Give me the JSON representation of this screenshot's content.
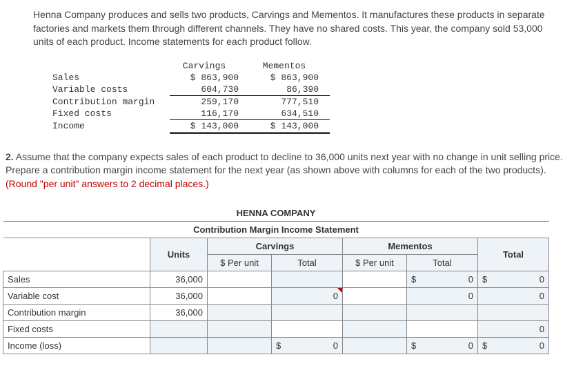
{
  "intro": {
    "p1": "Henna Company produces and sells two products, Carvings and Mementos. It manufactures these products in separate factories and markets them through different channels. They have no shared costs. This year, the company sold 53,000 units of each product. Income statements for each product follow."
  },
  "income_stmt": {
    "col1": "Carvings",
    "col2": "Mementos",
    "rows": {
      "sales": {
        "label": "Sales",
        "c": "$ 863,900",
        "m": "$ 863,900"
      },
      "var": {
        "label": "Variable costs",
        "c": "604,730",
        "m": "86,390"
      },
      "cm": {
        "label": "Contribution margin",
        "c": "259,170",
        "m": "777,510"
      },
      "fixed": {
        "label": "Fixed costs",
        "c": "116,170",
        "m": "634,510"
      },
      "income": {
        "label": "Income",
        "c": "$ 143,000",
        "m": "$ 143,000"
      }
    }
  },
  "q2": {
    "num": "2.",
    "text": " Assume that the company expects sales of each product to decline to 36,000 units next year with no change in unit selling price. Prepare a contribution margin income statement for the next year (as shown above with columns for each of the two products). ",
    "red": "(Round \"per unit\" answers to 2 decimal places.)"
  },
  "ws": {
    "title1": "HENNA COMPANY",
    "title2": "Contribution Margin Income Statement",
    "h_units": "Units",
    "h_carv": "Carvings",
    "h_mem": "Mementos",
    "h_total": "Total",
    "h_per": "$ Per unit",
    "h_tot": "Total",
    "rows": {
      "sales": {
        "label": "Sales",
        "units": "36,000",
        "m_sym": "$",
        "m_tot": "0",
        "t_sym": "$",
        "t_val": "0"
      },
      "var": {
        "label": "Variable cost",
        "units": "36,000",
        "c_tot": "0",
        "m_tot": "0",
        "t_val": "0"
      },
      "cm": {
        "label": "Contribution margin",
        "units": "36,000"
      },
      "fixed": {
        "label": "Fixed costs",
        "t_val": "0"
      },
      "inc": {
        "label": "Income (loss)",
        "c_sym": "$",
        "c_tot": "0",
        "m_sym": "$",
        "m_tot": "0",
        "t_sym": "$",
        "t_val": "0"
      }
    }
  }
}
